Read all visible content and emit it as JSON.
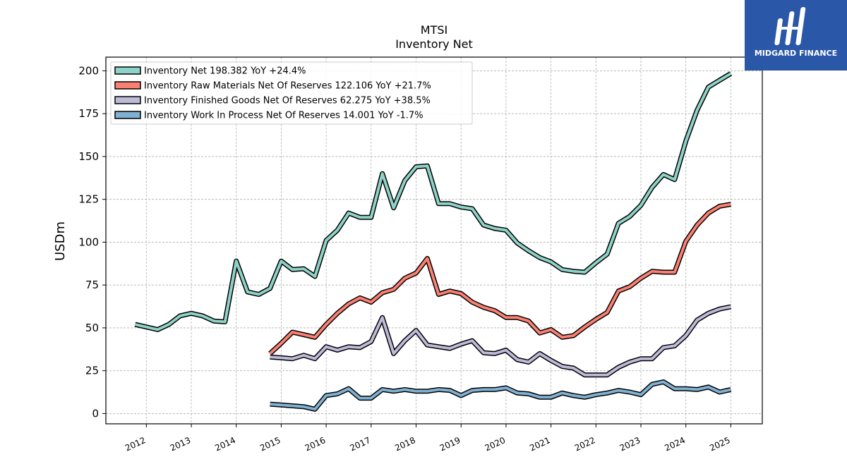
{
  "brand": {
    "name": "MIDGARD FINANCE",
    "background": "#2b57a8"
  },
  "chart_data": {
    "type": "line",
    "title": "MTSI",
    "subtitle": "Inventory Net",
    "ylabel": "USDm",
    "ylim": [
      -6,
      208
    ],
    "xlim": [
      2011.1,
      2025.7
    ],
    "yticks": [
      0,
      25,
      50,
      75,
      100,
      125,
      150,
      175,
      200
    ],
    "xticks": [
      "2012",
      "2013",
      "2014",
      "2015",
      "2016",
      "2017",
      "2018",
      "2019",
      "2020",
      "2021",
      "2022",
      "2023",
      "2024",
      "2025"
    ],
    "grid": true,
    "legend_position": "top-left",
    "series": [
      {
        "name": "Inventory Net  198.382 YoY +24.4%",
        "color": "#8dd3c7",
        "points": [
          [
            2011.75,
            52
          ],
          [
            2012.0,
            50.5
          ],
          [
            2012.25,
            49
          ],
          [
            2012.5,
            52
          ],
          [
            2012.75,
            57
          ],
          [
            2013.0,
            58.5
          ],
          [
            2013.25,
            57
          ],
          [
            2013.5,
            54
          ],
          [
            2013.75,
            53.5
          ],
          [
            2014.0,
            89
          ],
          [
            2014.25,
            71
          ],
          [
            2014.5,
            69.5
          ],
          [
            2014.75,
            73
          ],
          [
            2015.0,
            89
          ],
          [
            2015.25,
            84
          ],
          [
            2015.5,
            84.5
          ],
          [
            2015.75,
            80
          ],
          [
            2016.0,
            101
          ],
          [
            2016.25,
            107
          ],
          [
            2016.5,
            117
          ],
          [
            2016.75,
            114.5
          ],
          [
            2017.0,
            114.5
          ],
          [
            2017.25,
            140
          ],
          [
            2017.5,
            120
          ],
          [
            2017.75,
            136
          ],
          [
            2018.0,
            144
          ],
          [
            2018.25,
            144.5
          ],
          [
            2018.5,
            122.5
          ],
          [
            2018.75,
            122.5
          ],
          [
            2019.0,
            120.5
          ],
          [
            2019.25,
            119.5
          ],
          [
            2019.5,
            110
          ],
          [
            2019.75,
            108
          ],
          [
            2020.0,
            107
          ],
          [
            2020.25,
            99.5
          ],
          [
            2020.5,
            95
          ],
          [
            2020.75,
            91
          ],
          [
            2021.0,
            88.5
          ],
          [
            2021.25,
            84
          ],
          [
            2021.5,
            83
          ],
          [
            2021.75,
            82.5
          ],
          [
            2022.0,
            88
          ],
          [
            2022.25,
            93
          ],
          [
            2022.5,
            111
          ],
          [
            2022.75,
            115
          ],
          [
            2023.0,
            121.5
          ],
          [
            2023.25,
            132
          ],
          [
            2023.5,
            139.5
          ],
          [
            2023.75,
            136.5
          ],
          [
            2024.0,
            159
          ],
          [
            2024.25,
            177
          ],
          [
            2024.5,
            190.5
          ],
          [
            2024.75,
            194.5
          ],
          [
            2025.0,
            198.4
          ]
        ]
      },
      {
        "name": "Inventory Raw Materials Net Of Reserves  122.106 YoY +21.7%",
        "color": "#fb8072",
        "points": [
          [
            2014.75,
            35
          ],
          [
            2015.0,
            41
          ],
          [
            2015.25,
            47.5
          ],
          [
            2015.5,
            46
          ],
          [
            2015.75,
            44.5
          ],
          [
            2016.0,
            52
          ],
          [
            2016.25,
            58.5
          ],
          [
            2016.5,
            64
          ],
          [
            2016.75,
            67.5
          ],
          [
            2017.0,
            65
          ],
          [
            2017.25,
            70.5
          ],
          [
            2017.5,
            72.5
          ],
          [
            2017.75,
            79
          ],
          [
            2018.0,
            82
          ],
          [
            2018.25,
            90.5
          ],
          [
            2018.5,
            69.5
          ],
          [
            2018.75,
            71.5
          ],
          [
            2019.0,
            70
          ],
          [
            2019.25,
            65
          ],
          [
            2019.5,
            62
          ],
          [
            2019.75,
            60
          ],
          [
            2020.0,
            56
          ],
          [
            2020.25,
            56
          ],
          [
            2020.5,
            54
          ],
          [
            2020.75,
            47
          ],
          [
            2021.0,
            49
          ],
          [
            2021.25,
            44.5
          ],
          [
            2021.5,
            45.5
          ],
          [
            2021.75,
            50.5
          ],
          [
            2022.0,
            55
          ],
          [
            2022.25,
            59
          ],
          [
            2022.5,
            71.5
          ],
          [
            2022.75,
            74
          ],
          [
            2023.0,
            79
          ],
          [
            2023.25,
            83
          ],
          [
            2023.5,
            82.5
          ],
          [
            2023.75,
            82.5
          ],
          [
            2024.0,
            100.5
          ],
          [
            2024.25,
            110
          ],
          [
            2024.5,
            117
          ],
          [
            2024.75,
            121
          ],
          [
            2025.0,
            122.1
          ]
        ]
      },
      {
        "name": "Inventory Finished Goods Net Of Reserves  62.275 YoY +38.5%",
        "color": "#bebada",
        "points": [
          [
            2014.75,
            33
          ],
          [
            2015.0,
            32.5
          ],
          [
            2015.25,
            32
          ],
          [
            2015.5,
            34
          ],
          [
            2015.75,
            32
          ],
          [
            2016.0,
            39
          ],
          [
            2016.25,
            37
          ],
          [
            2016.5,
            39
          ],
          [
            2016.75,
            38.5
          ],
          [
            2017.0,
            42
          ],
          [
            2017.25,
            56
          ],
          [
            2017.5,
            35
          ],
          [
            2017.75,
            42.5
          ],
          [
            2018.0,
            48.5
          ],
          [
            2018.25,
            40
          ],
          [
            2018.5,
            39
          ],
          [
            2018.75,
            38
          ],
          [
            2019.0,
            40.5
          ],
          [
            2019.25,
            42.5
          ],
          [
            2019.5,
            35.5
          ],
          [
            2019.75,
            35
          ],
          [
            2020.0,
            37
          ],
          [
            2020.25,
            31.5
          ],
          [
            2020.5,
            30
          ],
          [
            2020.75,
            35
          ],
          [
            2021.0,
            31
          ],
          [
            2021.25,
            27.5
          ],
          [
            2021.5,
            26.5
          ],
          [
            2021.75,
            22.5
          ],
          [
            2022.0,
            22.5
          ],
          [
            2022.25,
            22.5
          ],
          [
            2022.5,
            27
          ],
          [
            2022.75,
            30
          ],
          [
            2023.0,
            32
          ],
          [
            2023.25,
            32
          ],
          [
            2023.5,
            38.5
          ],
          [
            2023.75,
            39.5
          ],
          [
            2024.0,
            45.5
          ],
          [
            2024.25,
            54.5
          ],
          [
            2024.5,
            58.5
          ],
          [
            2024.75,
            61
          ],
          [
            2025.0,
            62.3
          ]
        ]
      },
      {
        "name": "Inventory Work In Process Net Of Reserves  14.001 YoY -1.7%",
        "color": "#80b1d3",
        "points": [
          [
            2014.75,
            5.5
          ],
          [
            2015.0,
            5
          ],
          [
            2015.25,
            4.5
          ],
          [
            2015.5,
            4
          ],
          [
            2015.75,
            2.5
          ],
          [
            2016.0,
            10.5
          ],
          [
            2016.25,
            11.5
          ],
          [
            2016.5,
            14.5
          ],
          [
            2016.75,
            9
          ],
          [
            2017.0,
            9
          ],
          [
            2017.25,
            14
          ],
          [
            2017.5,
            13
          ],
          [
            2017.75,
            14
          ],
          [
            2018.0,
            13
          ],
          [
            2018.25,
            13
          ],
          [
            2018.5,
            14
          ],
          [
            2018.75,
            13.5
          ],
          [
            2019.0,
            10.5
          ],
          [
            2019.25,
            13.5
          ],
          [
            2019.5,
            14
          ],
          [
            2019.75,
            14
          ],
          [
            2020.0,
            15
          ],
          [
            2020.25,
            12
          ],
          [
            2020.5,
            11.5
          ],
          [
            2020.75,
            9.5
          ],
          [
            2021.0,
            9.5
          ],
          [
            2021.25,
            12
          ],
          [
            2021.5,
            10.5
          ],
          [
            2021.75,
            9.5
          ],
          [
            2022.0,
            11
          ],
          [
            2022.25,
            12
          ],
          [
            2022.5,
            13.5
          ],
          [
            2022.75,
            12.5
          ],
          [
            2023.0,
            11
          ],
          [
            2023.25,
            17
          ],
          [
            2023.5,
            18.5
          ],
          [
            2023.75,
            14.5
          ],
          [
            2024.0,
            14.5
          ],
          [
            2024.25,
            14
          ],
          [
            2024.5,
            15.5
          ],
          [
            2024.75,
            12.5
          ],
          [
            2025.0,
            14.0
          ]
        ]
      }
    ]
  }
}
